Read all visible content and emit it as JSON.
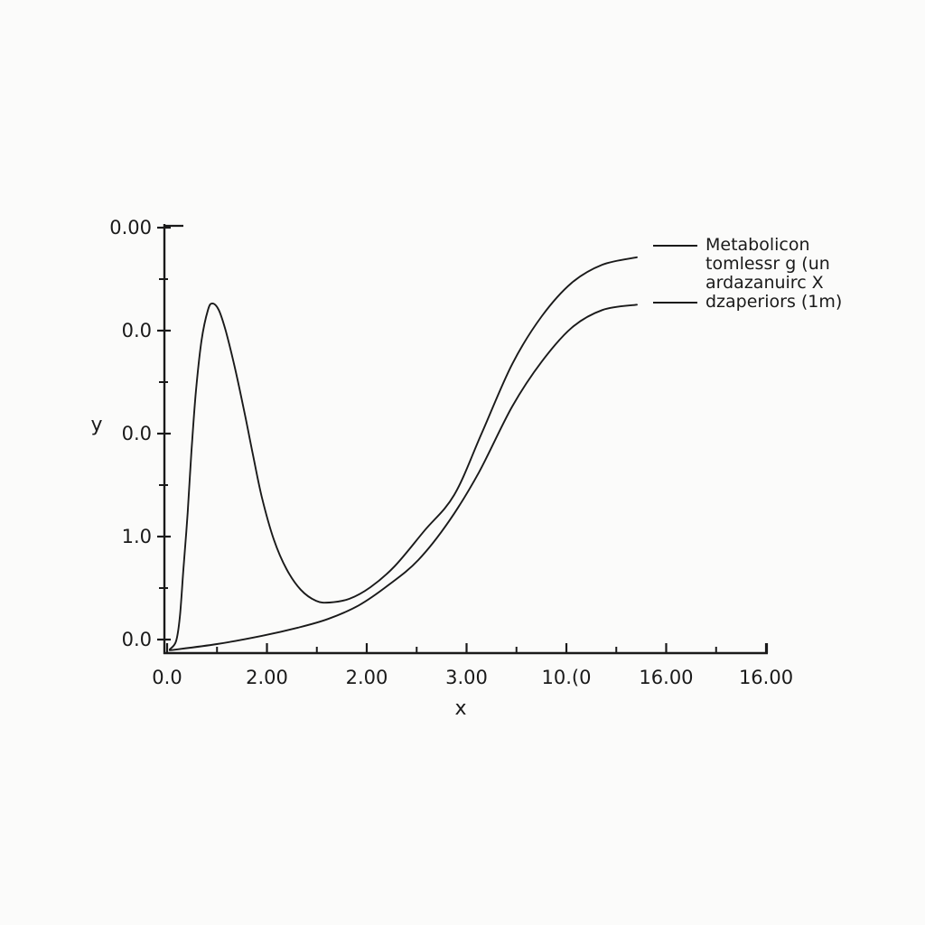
{
  "figure": {
    "background": "#fbfbfa",
    "ink_color": "#1a1a1a"
  },
  "chart_data": {
    "type": "line",
    "title": "",
    "xlabel": "x",
    "ylabel": "y",
    "xlim": [
      0,
      16.05
    ],
    "ylim": [
      -0.033,
      1.005
    ],
    "grid": false,
    "legend_position": "upper right",
    "legend_frame": false,
    "x_ticks": {
      "values": [
        0,
        2.667,
        5.333,
        8,
        10.667,
        13.333,
        16
      ],
      "labels": [
        "0.0",
        "2.00",
        "2.00",
        "3.00",
        "10.(0",
        "16.00",
        "16.00"
      ],
      "minor_values": [
        1.333,
        4.0,
        6.667,
        9.333,
        12.0,
        14.667
      ]
    },
    "y_ticks": {
      "values": [
        0,
        0.25,
        0.5,
        0.75,
        1.0
      ],
      "labels": [
        "0.0",
        "1.0",
        "0.0",
        "0.0",
        "0.00"
      ],
      "minor_values": [
        0.125,
        0.375,
        0.625,
        0.875
      ]
    },
    "legend": {
      "entries": [
        {
          "label_lines": [
            "Metabolicon",
            "tomlessr g (un",
            "ardazanuirc X"
          ],
          "color": "#1a1a1a"
        },
        {
          "label_lines": [
            "dzaperiors (1m)"
          ],
          "color": "#1a1a1a"
        }
      ]
    },
    "series": [
      {
        "name": "Metabolicon tomlessr g (un ardazanuirc X",
        "color": "#1a1a1a",
        "points": [
          [
            0.07,
            -0.024
          ],
          [
            0.24,
            -0.004
          ],
          [
            0.34,
            0.055
          ],
          [
            0.43,
            0.164
          ],
          [
            0.55,
            0.309
          ],
          [
            0.65,
            0.456
          ],
          [
            0.77,
            0.603
          ],
          [
            0.92,
            0.726
          ],
          [
            1.09,
            0.8
          ],
          [
            1.21,
            0.816
          ],
          [
            1.38,
            0.8
          ],
          [
            1.57,
            0.748
          ],
          [
            1.81,
            0.66
          ],
          [
            2.05,
            0.559
          ],
          [
            2.29,
            0.45
          ],
          [
            2.53,
            0.346
          ],
          [
            2.85,
            0.243
          ],
          [
            3.19,
            0.171
          ],
          [
            3.57,
            0.121
          ],
          [
            3.98,
            0.094
          ],
          [
            4.34,
            0.09
          ],
          [
            4.87,
            0.099
          ],
          [
            5.43,
            0.127
          ],
          [
            6.08,
            0.178
          ],
          [
            6.88,
            0.265
          ],
          [
            7.67,
            0.351
          ],
          [
            8.4,
            0.5
          ],
          [
            9.22,
            0.669
          ],
          [
            10.01,
            0.785
          ],
          [
            10.81,
            0.866
          ],
          [
            11.63,
            0.91
          ],
          [
            12.55,
            0.928
          ]
        ]
      },
      {
        "name": "dzaperiors (1m)",
        "color": "#1a1a1a",
        "points": [
          [
            0.07,
            -0.026
          ],
          [
            1.33,
            -0.011
          ],
          [
            2.53,
            0.009
          ],
          [
            3.5,
            0.029
          ],
          [
            4.3,
            0.05
          ],
          [
            5.12,
            0.083
          ],
          [
            5.91,
            0.132
          ],
          [
            6.71,
            0.193
          ],
          [
            7.53,
            0.287
          ],
          [
            8.33,
            0.406
          ],
          [
            9.22,
            0.566
          ],
          [
            10.01,
            0.675
          ],
          [
            10.81,
            0.757
          ],
          [
            11.63,
            0.8
          ],
          [
            12.55,
            0.813
          ]
        ]
      }
    ]
  }
}
